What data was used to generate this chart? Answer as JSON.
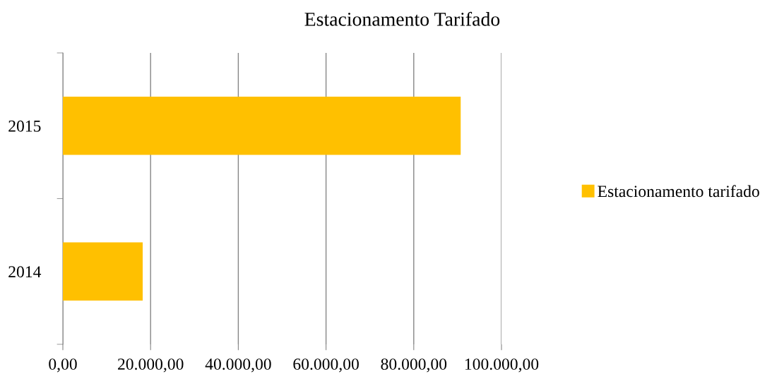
{
  "chart_data": {
    "type": "bar",
    "orientation": "horizontal",
    "title": "Estacionamento Tarifado",
    "categories": [
      "2015",
      "2014"
    ],
    "series": [
      {
        "name": "Estacionamento tarifado",
        "color": "#ffc000",
        "values": [
          90700,
          18200
        ]
      }
    ],
    "xlim": [
      0,
      100000
    ],
    "xticks": [
      {
        "value": 0,
        "label": "0,00"
      },
      {
        "value": 20000,
        "label": "20.000,00"
      },
      {
        "value": 40000,
        "label": "40.000,00"
      },
      {
        "value": 60000,
        "label": "60.000,00"
      },
      {
        "value": 80000,
        "label": "80.000,00"
      },
      {
        "value": 100000,
        "label": "100.000,00"
      }
    ],
    "grid": "x",
    "legend": "right"
  }
}
